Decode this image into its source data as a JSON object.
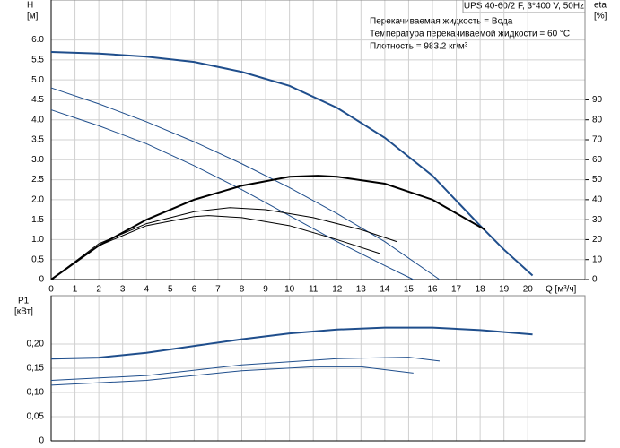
{
  "chart_data": [
    {
      "type": "line",
      "title": "UPS 40-60/2 F, 3*400 V, 50Hz",
      "annotations": [
        "Перекачиваемая жидкость = Вода",
        "Температура перекачиваемой жидкости = 60 °C",
        "Плотность = 983.2 кг/м³"
      ],
      "y_label": "H",
      "y_unit": "[м]",
      "y2_label": "eta",
      "y2_unit": "[%]",
      "x_label": "Q [м³/ч]",
      "xlim": [
        0,
        22.4
      ],
      "xticks": [
        0,
        1,
        2,
        3,
        4,
        5,
        6,
        7,
        8,
        9,
        10,
        11,
        12,
        13,
        14,
        15,
        16,
        17,
        18,
        19,
        20
      ],
      "ylim": [
        0,
        7
      ],
      "yticks": [
        0,
        0.5,
        {
          "value": 1,
          "label": "1.0"
        },
        1.5,
        {
          "value": 2,
          "label": "2.0"
        },
        2.5,
        {
          "value": 3,
          "label": "3.0"
        },
        3.5,
        {
          "value": 4,
          "label": "4.0"
        },
        4.5,
        {
          "value": 5,
          "label": "5.0"
        },
        5.5,
        {
          "value": 6,
          "label": "6.0"
        }
      ],
      "y2lim": [
        0,
        140
      ],
      "y2ticks": [
        0,
        10,
        20,
        30,
        40,
        50,
        60,
        70,
        80,
        90
      ],
      "grid": true,
      "series": [
        {
          "color": "#1f4e8c",
          "width": 2,
          "x": [
            0,
            2,
            4,
            6,
            8,
            10,
            12,
            14,
            16,
            18,
            19,
            20.2
          ],
          "values": [
            5.7,
            5.66,
            5.58,
            5.45,
            5.2,
            4.85,
            4.3,
            3.55,
            2.6,
            1.35,
            0.75,
            0.1
          ]
        },
        {
          "color": "#1f4e8c",
          "width": 1,
          "x": [
            0,
            2,
            4,
            6,
            8,
            10,
            12,
            14,
            16.3
          ],
          "values": [
            4.8,
            4.4,
            3.95,
            3.45,
            2.9,
            2.3,
            1.65,
            0.95,
            0
          ]
        },
        {
          "color": "#1f4e8c",
          "width": 1,
          "x": [
            0,
            2,
            4,
            6,
            8,
            10,
            12,
            14,
            15.2
          ],
          "values": [
            4.25,
            3.85,
            3.4,
            2.85,
            2.25,
            1.6,
            0.95,
            0.35,
            0
          ]
        },
        {
          "color": "#000000",
          "width": 2,
          "axis": "y2",
          "x": [
            0,
            2,
            4,
            6,
            8,
            10,
            11.2,
            12,
            14,
            16,
            18.2
          ],
          "values": [
            0,
            17,
            30,
            40,
            47,
            51.5,
            52,
            51.5,
            48,
            40,
            25
          ]
        },
        {
          "color": "#000000",
          "width": 1,
          "axis": "y2",
          "x": [
            0,
            2,
            4,
            6,
            7.5,
            9,
            11,
            13,
            14.5
          ],
          "values": [
            0,
            18,
            28,
            34,
            36,
            35,
            31,
            25,
            19
          ]
        },
        {
          "color": "#000000",
          "width": 1,
          "axis": "y2",
          "x": [
            0,
            2,
            4,
            6,
            6.6,
            8,
            10,
            12,
            13.8
          ],
          "values": [
            0,
            17,
            27,
            31.5,
            32,
            31,
            27,
            20,
            13
          ]
        }
      ]
    },
    {
      "type": "line",
      "y_label": "P1",
      "y_unit": "[кВт]",
      "xlim": [
        0,
        22.4
      ],
      "ylim": [
        0,
        0.3
      ],
      "yticks": [
        0,
        {
          "value": 0.05,
          "label": "0,05"
        },
        {
          "value": 0.1,
          "label": "0,10"
        },
        {
          "value": 0.15,
          "label": "0,15"
        },
        {
          "value": 0.2,
          "label": "0,20"
        }
      ],
      "grid": true,
      "series": [
        {
          "color": "#1f4e8c",
          "width": 2,
          "x": [
            0,
            2,
            4,
            6,
            8,
            10,
            12,
            14,
            16,
            18,
            20.2
          ],
          "values": [
            0.17,
            0.172,
            0.182,
            0.196,
            0.21,
            0.222,
            0.23,
            0.234,
            0.234,
            0.229,
            0.22
          ]
        },
        {
          "color": "#1f4e8c",
          "width": 1,
          "x": [
            0,
            4,
            8,
            12,
            15,
            16.3
          ],
          "values": [
            0.125,
            0.135,
            0.157,
            0.17,
            0.173,
            0.165
          ]
        },
        {
          "color": "#1f4e8c",
          "width": 1,
          "x": [
            0,
            4,
            8,
            11,
            13,
            15.2
          ],
          "values": [
            0.115,
            0.125,
            0.145,
            0.153,
            0.153,
            0.14
          ]
        }
      ]
    }
  ]
}
